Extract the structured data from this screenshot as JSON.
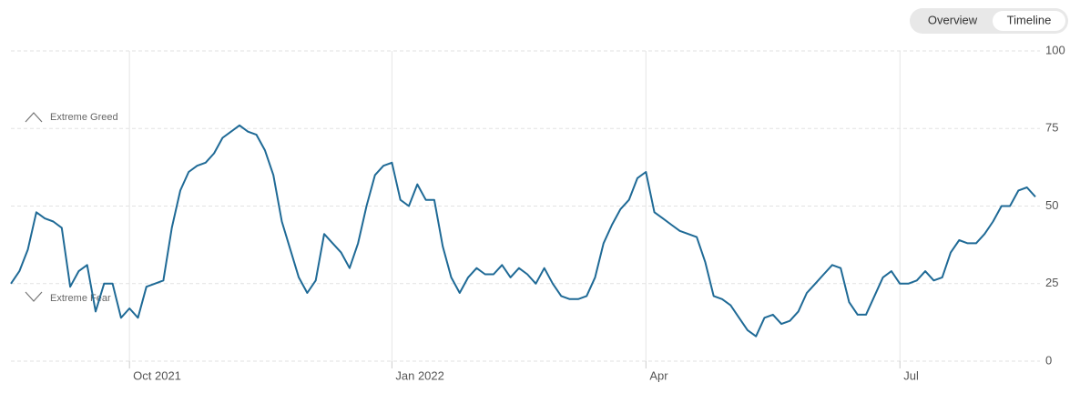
{
  "chart_data": {
    "type": "line",
    "annotations": [
      "Extreme Greed",
      "Extreme Fear"
    ],
    "controls": [
      "Overview",
      "Timeline"
    ],
    "categories": [
      null,
      null,
      null,
      null,
      null,
      null,
      null,
      null,
      null,
      null,
      null,
      null,
      null,
      null,
      "Oct 2021",
      null,
      null,
      null,
      null,
      null,
      null,
      null,
      null,
      null,
      null,
      null,
      null,
      null,
      null,
      null,
      null,
      null,
      null,
      null,
      null,
      null,
      null,
      null,
      null,
      null,
      null,
      null,
      null,
      null,
      null,
      "Jan 2022",
      null,
      null,
      null,
      null,
      null,
      null,
      null,
      null,
      null,
      null,
      null,
      null,
      null,
      null,
      null,
      null,
      null,
      null,
      null,
      null,
      null,
      null,
      null,
      null,
      null,
      null,
      null,
      null,
      null,
      "Apr",
      null,
      null,
      null,
      null,
      null,
      null,
      null,
      null,
      null,
      null,
      null,
      null,
      null,
      null,
      null,
      null,
      null,
      null,
      null,
      null,
      null,
      null,
      null,
      null,
      null,
      null,
      null,
      null,
      null,
      "Jul",
      null,
      null,
      null,
      null,
      null,
      null,
      null,
      null,
      null,
      null,
      null,
      null,
      null,
      null,
      null,
      null
    ],
    "values": [
      25,
      29,
      36,
      48,
      46,
      45,
      43,
      24,
      29,
      31,
      16,
      25,
      25,
      14,
      17,
      14,
      24,
      25,
      26,
      43,
      55,
      61,
      63,
      64,
      67,
      72,
      74,
      76,
      74,
      73,
      68,
      60,
      45,
      36,
      27,
      22,
      26,
      41,
      38,
      35,
      30,
      38,
      50,
      60,
      63,
      64,
      52,
      50,
      57,
      52,
      52,
      37,
      27,
      22,
      27,
      30,
      28,
      28,
      31,
      27,
      30,
      28,
      25,
      30,
      25,
      21,
      20,
      20,
      21,
      27,
      38,
      44,
      49,
      52,
      59,
      61,
      48,
      46,
      44,
      42,
      41,
      40,
      32,
      21,
      20,
      18,
      14,
      10,
      8,
      14,
      15,
      12,
      13,
      16,
      22,
      25,
      28,
      31,
      30,
      19,
      15,
      15,
      21,
      27,
      29,
      25,
      25,
      26,
      29,
      26,
      27,
      35,
      39,
      38,
      38,
      41,
      45,
      50,
      50,
      55,
      56,
      53
    ],
    "color": "#1f6a96",
    "ylim": [
      0,
      100
    ],
    "yticks": [
      0,
      25,
      50,
      75,
      100
    ],
    "grid": true
  }
}
